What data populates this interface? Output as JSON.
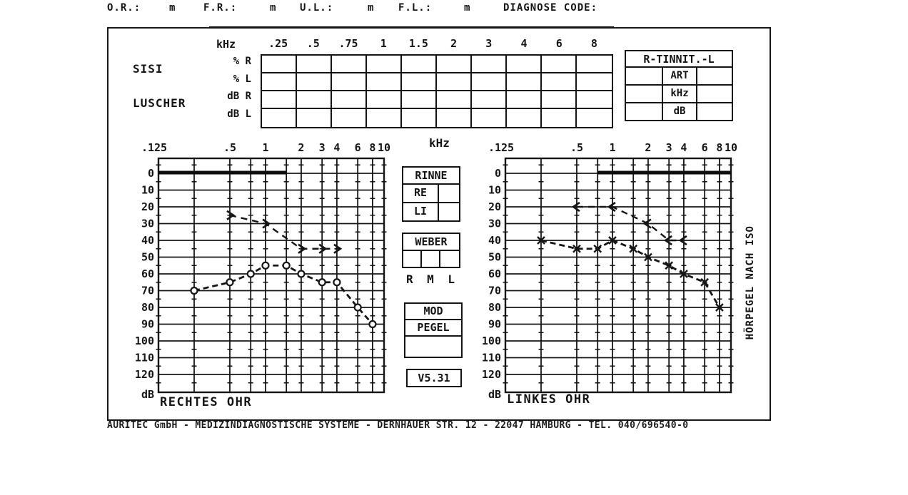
{
  "header": {
    "fields": [
      {
        "label": "O.R.:",
        "value": "m"
      },
      {
        "label": "F.R.:",
        "value": "m"
      },
      {
        "label": "U.L.:",
        "value": "m"
      },
      {
        "label": "F.L.:",
        "value": "m"
      },
      {
        "label": "DIAGNOSE CODE:",
        "value": ""
      }
    ]
  },
  "sisi_table": {
    "khz_label": "kHz",
    "col_headers": [
      ".25",
      ".5",
      ".75",
      "1",
      "1.5",
      "2",
      "3",
      "4",
      "6",
      "8"
    ],
    "group1": "SISI",
    "group2": "LUSCHER",
    "row_units": [
      "% R",
      "% L",
      "dB R",
      "dB L"
    ]
  },
  "tinnitus_box": {
    "title": "R-TINNIT.-L",
    "row_labels": [
      "ART",
      "kHz",
      "dB"
    ]
  },
  "middle_panel": {
    "rinne": {
      "title": "RINNE",
      "rows": [
        "RE",
        "LI"
      ]
    },
    "weber": {
      "title": "WEBER",
      "cols": [
        "R",
        "M",
        "L"
      ]
    },
    "mod": {
      "rows": [
        "MOD",
        "PEGEL",
        ""
      ]
    },
    "version": "V5.31"
  },
  "charts_common": {
    "center_unit": "kHz",
    "right_axis_title": "HÖRPEGEL NACH ISO",
    "y_unit": "dB"
  },
  "chart_data": [
    {
      "type": "line",
      "title": "RECHTES OHR",
      "x_unit": "kHz",
      "y_unit": "dB",
      "x_scale": "log2",
      "ylim": [
        0,
        120
      ],
      "grid": true,
      "freq_gridlines": [
        0.125,
        0.25,
        0.5,
        0.75,
        1,
        1.5,
        2,
        3,
        4,
        6,
        8,
        10
      ],
      "x_tick_labels": [
        {
          "f": 0.125,
          "label": ".125"
        },
        {
          "f": 0.5,
          "label": ".5"
        },
        {
          "f": 1,
          "label": "1"
        },
        {
          "f": 2,
          "label": "2"
        },
        {
          "f": 3,
          "label": "3"
        },
        {
          "f": 4,
          "label": "4"
        },
        {
          "f": 6,
          "label": "6"
        },
        {
          "f": 8,
          "label": "8"
        },
        {
          "f": 10,
          "label": "10"
        }
      ],
      "y_ticks": [
        0,
        10,
        20,
        30,
        40,
        50,
        60,
        70,
        80,
        90,
        100,
        110,
        120
      ],
      "bold_zero_line_span": [
        0.125,
        1.5
      ],
      "series": [
        {
          "name": "air-conduction-circle-markers",
          "marker": "circle",
          "points": [
            [
              0.25,
              70
            ],
            [
              0.5,
              65
            ],
            [
              0.75,
              60
            ],
            [
              1,
              55
            ],
            [
              1.5,
              55
            ],
            [
              2,
              60
            ],
            [
              3,
              65
            ],
            [
              4,
              65
            ],
            [
              6,
              80
            ],
            [
              8,
              90
            ]
          ]
        },
        {
          "name": "bone-conduction-arrow-markers",
          "marker": "gt",
          "points": [
            [
              0.5,
              25
            ],
            [
              1,
              30
            ],
            [
              2,
              45
            ],
            [
              3,
              45
            ],
            [
              4,
              45
            ]
          ]
        }
      ]
    },
    {
      "type": "line",
      "title": "LINKES OHR",
      "x_unit": "kHz",
      "y_unit": "dB",
      "x_scale": "log2",
      "ylim": [
        0,
        120
      ],
      "grid": true,
      "freq_gridlines": [
        0.125,
        0.25,
        0.5,
        0.75,
        1,
        1.5,
        2,
        3,
        4,
        6,
        8,
        10
      ],
      "x_tick_labels": [
        {
          "f": 0.125,
          "label": ".125"
        },
        {
          "f": 0.5,
          "label": ".5"
        },
        {
          "f": 1,
          "label": "1"
        },
        {
          "f": 2,
          "label": "2"
        },
        {
          "f": 3,
          "label": "3"
        },
        {
          "f": 4,
          "label": "4"
        },
        {
          "f": 6,
          "label": "6"
        },
        {
          "f": 8,
          "label": "8"
        },
        {
          "f": 10,
          "label": "10"
        }
      ],
      "y_ticks": [
        0,
        10,
        20,
        30,
        40,
        50,
        60,
        70,
        80,
        90,
        100,
        110,
        120
      ],
      "bold_zero_line_span": [
        0.75,
        10
      ],
      "series": [
        {
          "name": "air-conduction-x-markers",
          "marker": "x",
          "points": [
            [
              0.25,
              40
            ],
            [
              0.5,
              45
            ],
            [
              0.75,
              45
            ],
            [
              1,
              40
            ],
            [
              1.5,
              45
            ],
            [
              2,
              50
            ],
            [
              3,
              55
            ],
            [
              4,
              60
            ],
            [
              6,
              65
            ],
            [
              8,
              80
            ]
          ]
        },
        {
          "name": "bone-conduction-arrow-markers",
          "marker": "lt",
          "points": [
            [
              0.5,
              20
            ],
            [
              1,
              20
            ],
            [
              2,
              30
            ],
            [
              3,
              40
            ],
            [
              4,
              40
            ]
          ]
        }
      ]
    }
  ],
  "footer": "AURITEC GmbH - MEDIZINDIAGNOSTISCHE SYSTEME - DERNHAUER STR. 12 - 22047 HAMBURG - TEL. 040/696540-0"
}
